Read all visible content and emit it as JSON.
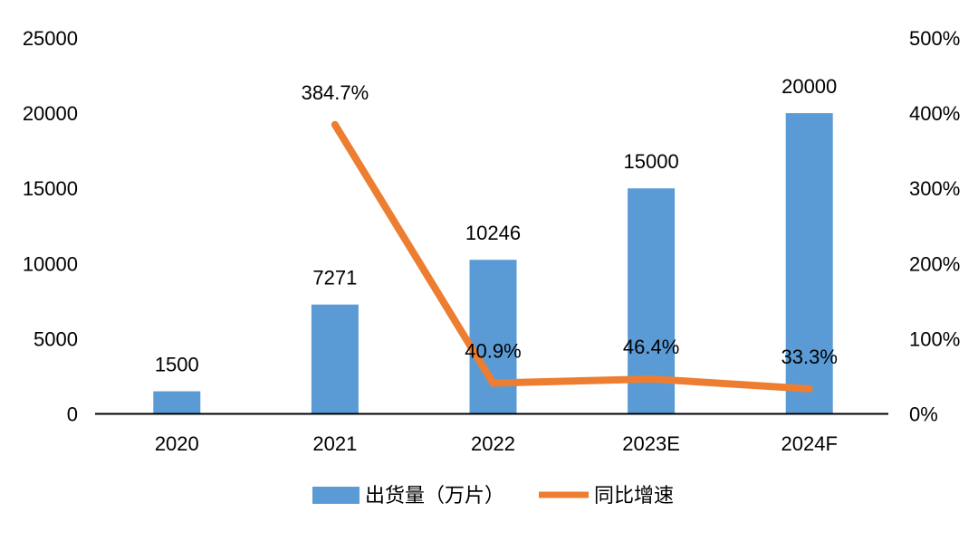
{
  "chart_data": {
    "type": "bar",
    "subtype": "bar+line dual-axis combo",
    "title": "",
    "categories": [
      "2020",
      "2021",
      "2022",
      "2023E",
      "2024F"
    ],
    "series": [
      {
        "name": "出货量（万片）",
        "type": "bar",
        "axis": "left",
        "color": "#5B9BD5",
        "values": [
          1500,
          7271,
          10246,
          15000,
          20000
        ],
        "labels": [
          "1500",
          "7271",
          "10246",
          "15000",
          "20000"
        ]
      },
      {
        "name": "同比增速",
        "type": "line",
        "axis": "right",
        "color": "#ED7D31",
        "values": [
          null,
          384.7,
          40.9,
          46.4,
          33.3
        ],
        "labels": [
          null,
          "384.7%",
          "40.9%",
          "46.4%",
          "33.3%"
        ]
      }
    ],
    "left_axis": {
      "min": 0,
      "max": 25000,
      "tick_values": [
        0,
        5000,
        10000,
        15000,
        20000,
        25000
      ],
      "tick_labels": [
        "0",
        "5000",
        "10000",
        "15000",
        "20000",
        "25000"
      ]
    },
    "right_axis": {
      "min": 0,
      "max": 500,
      "tick_values": [
        0,
        100,
        200,
        300,
        400,
        500
      ],
      "tick_labels": [
        "0%",
        "100%",
        "200%",
        "300%",
        "400%",
        "500%"
      ]
    },
    "grid": false,
    "legend_position": "bottom",
    "axis_line_color": "#000000",
    "text_color": "#000000",
    "background_color": "#FFFFFF"
  }
}
